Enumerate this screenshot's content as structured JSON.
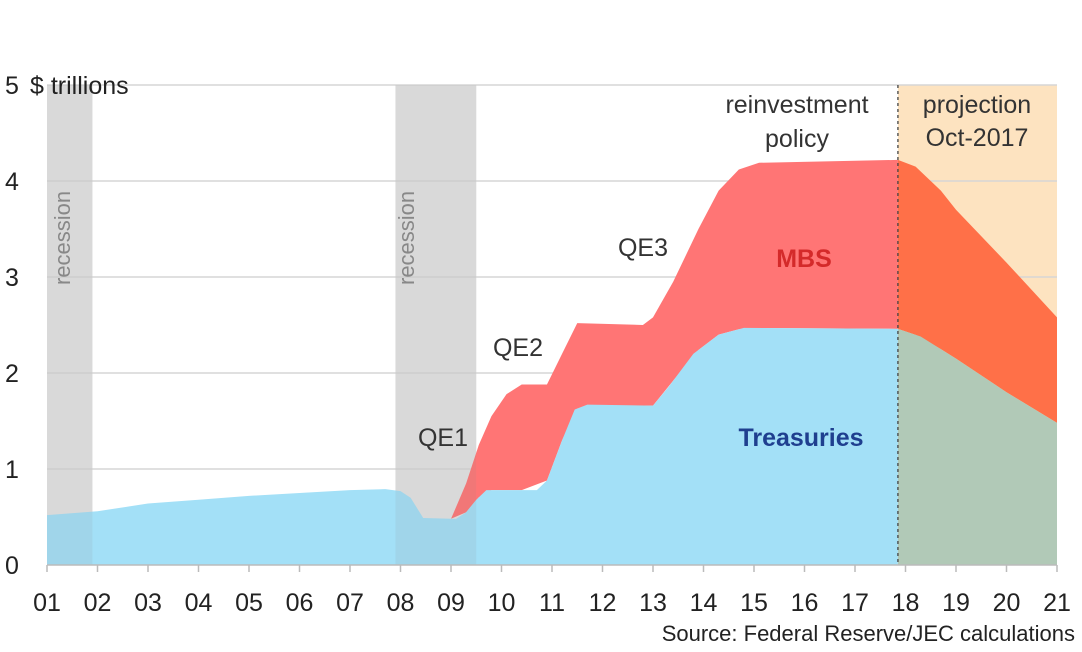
{
  "chart_data": {
    "type": "area",
    "stacked": true,
    "ylabel": "$ trillions",
    "ylim": [
      0,
      5
    ],
    "xlim": [
      2001,
      2021
    ],
    "y_ticks": [
      "0",
      "1",
      "2",
      "3",
      "4",
      "5"
    ],
    "x_ticks": [
      "01",
      "02",
      "03",
      "04",
      "05",
      "06",
      "07",
      "08",
      "09",
      "10",
      "11",
      "12",
      "13",
      "14",
      "15",
      "16",
      "17",
      "18",
      "19",
      "20",
      "21"
    ],
    "grid": true,
    "series": [
      {
        "name": "Treasuries",
        "color": "#a3e0f7",
        "projection_color": "#b1c9b7",
        "label_color": "#1f3f8f",
        "points": [
          [
            2001.0,
            0.52
          ],
          [
            2002.0,
            0.56
          ],
          [
            2003.0,
            0.64
          ],
          [
            2004.0,
            0.68
          ],
          [
            2005.0,
            0.72
          ],
          [
            2006.0,
            0.75
          ],
          [
            2007.0,
            0.78
          ],
          [
            2007.7,
            0.79
          ],
          [
            2008.0,
            0.77
          ],
          [
            2008.2,
            0.7
          ],
          [
            2008.45,
            0.49
          ],
          [
            2009.1,
            0.48
          ],
          [
            2009.3,
            0.55
          ],
          [
            2009.5,
            0.68
          ],
          [
            2009.7,
            0.78
          ],
          [
            2010.7,
            0.78
          ],
          [
            2010.9,
            0.88
          ],
          [
            2011.2,
            1.3
          ],
          [
            2011.45,
            1.62
          ],
          [
            2011.7,
            1.67
          ],
          [
            2013.0,
            1.66
          ],
          [
            2013.3,
            1.85
          ],
          [
            2013.8,
            2.2
          ],
          [
            2014.3,
            2.4
          ],
          [
            2014.8,
            2.47
          ],
          [
            2017.85,
            2.46
          ],
          [
            2018.3,
            2.38
          ],
          [
            2019.0,
            2.15
          ],
          [
            2020.0,
            1.8
          ],
          [
            2021.0,
            1.48
          ]
        ]
      },
      {
        "name": "MBS",
        "color": "#ff7575",
        "projection_color": "#ff7048",
        "label_color": "#d42a2a",
        "total_points": [
          [
            2009.0,
            0.48
          ],
          [
            2009.3,
            0.85
          ],
          [
            2009.55,
            1.25
          ],
          [
            2009.8,
            1.55
          ],
          [
            2010.1,
            1.78
          ],
          [
            2010.4,
            1.88
          ],
          [
            2010.9,
            1.88
          ],
          [
            2011.2,
            2.2
          ],
          [
            2011.5,
            2.52
          ],
          [
            2012.8,
            2.5
          ],
          [
            2013.0,
            2.58
          ],
          [
            2013.4,
            2.95
          ],
          [
            2013.9,
            3.5
          ],
          [
            2014.3,
            3.9
          ],
          [
            2014.7,
            4.12
          ],
          [
            2015.1,
            4.19
          ],
          [
            2017.85,
            4.22
          ],
          [
            2018.2,
            4.15
          ],
          [
            2018.7,
            3.9
          ],
          [
            2019.0,
            3.7
          ],
          [
            2020.0,
            3.15
          ],
          [
            2021.0,
            2.58
          ]
        ]
      }
    ],
    "projection_start": 2017.85,
    "projection_bg": "#fde3c0",
    "recessions": [
      [
        2001.0,
        2001.9
      ],
      [
        2007.9,
        2009.5
      ]
    ],
    "annotations": {
      "recession": "recession",
      "qe1": "QE1",
      "qe2": "QE2",
      "qe3": "QE3",
      "reinvest_1": "reinvestment",
      "reinvest_2": "policy",
      "projection_1": "projection",
      "projection_2": "Oct-2017",
      "mbs": "MBS",
      "treasuries": "Treasuries"
    },
    "source": "Source: Federal Reserve/JEC calculations"
  }
}
